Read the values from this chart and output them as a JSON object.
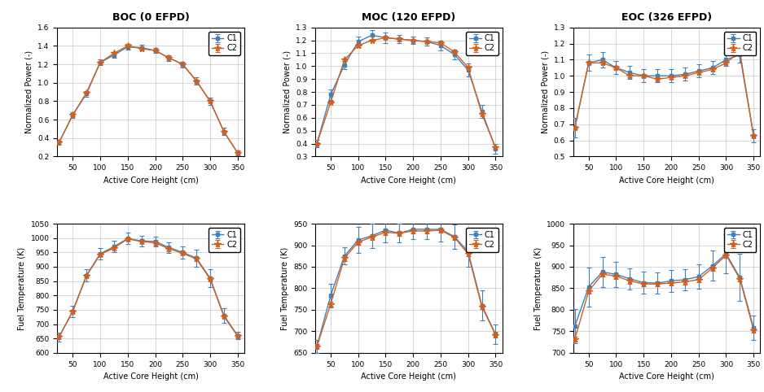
{
  "titles": [
    "BOC (0 EFPD)",
    "MOC (120 EFPD)",
    "EOC (326 EFPD)"
  ],
  "xlabel": "Active Core Height (cm)",
  "ylabel_power": "Normalized Power (-)",
  "ylabel_temp": "Fuel Temperature (K)",
  "x": [
    25,
    50,
    75,
    100,
    125,
    150,
    175,
    200,
    225,
    250,
    275,
    300,
    325,
    350
  ],
  "boc_c1_power": [
    0.35,
    0.65,
    0.88,
    1.22,
    1.3,
    1.39,
    1.38,
    1.35,
    1.27,
    1.2,
    1.02,
    0.8,
    0.47,
    0.24
  ],
  "boc_c2_power": [
    0.35,
    0.65,
    0.89,
    1.22,
    1.32,
    1.4,
    1.37,
    1.35,
    1.27,
    1.2,
    1.02,
    0.8,
    0.47,
    0.24
  ],
  "boc_c1_power_err": [
    0.02,
    0.03,
    0.03,
    0.03,
    0.03,
    0.03,
    0.03,
    0.03,
    0.03,
    0.03,
    0.04,
    0.04,
    0.04,
    0.03
  ],
  "boc_c2_power_err": [
    0.01,
    0.01,
    0.01,
    0.01,
    0.01,
    0.01,
    0.01,
    0.01,
    0.01,
    0.01,
    0.01,
    0.01,
    0.01,
    0.01
  ],
  "moc_c1_power": [
    0.4,
    0.78,
    1.01,
    1.19,
    1.24,
    1.22,
    1.21,
    1.2,
    1.19,
    1.16,
    1.09,
    0.97,
    0.65,
    0.36
  ],
  "moc_c2_power": [
    0.4,
    0.72,
    1.05,
    1.16,
    1.2,
    1.22,
    1.21,
    1.2,
    1.19,
    1.18,
    1.11,
    0.99,
    0.63,
    0.37
  ],
  "moc_c1_power_err": [
    0.03,
    0.04,
    0.03,
    0.04,
    0.04,
    0.04,
    0.03,
    0.03,
    0.03,
    0.04,
    0.04,
    0.05,
    0.05,
    0.04
  ],
  "moc_c2_power_err": [
    0.01,
    0.01,
    0.01,
    0.01,
    0.01,
    0.01,
    0.01,
    0.01,
    0.01,
    0.01,
    0.01,
    0.01,
    0.01,
    0.01
  ],
  "eoc_c1_power": [
    0.68,
    1.08,
    1.1,
    1.05,
    1.02,
    1.0,
    1.0,
    1.0,
    1.01,
    1.03,
    1.05,
    1.1,
    1.13,
    0.63
  ],
  "eoc_c2_power": [
    0.68,
    1.08,
    1.08,
    1.05,
    1.0,
    1.0,
    0.98,
    0.99,
    1.0,
    1.02,
    1.04,
    1.08,
    1.15,
    0.63
  ],
  "eoc_c1_power_err": [
    0.06,
    0.05,
    0.05,
    0.04,
    0.04,
    0.04,
    0.04,
    0.04,
    0.04,
    0.04,
    0.04,
    0.04,
    0.05,
    0.04
  ],
  "eoc_c2_power_err": [
    0.01,
    0.01,
    0.01,
    0.01,
    0.01,
    0.01,
    0.01,
    0.01,
    0.01,
    0.01,
    0.01,
    0.01,
    0.01,
    0.01
  ],
  "boc_c1_temp": [
    655,
    745,
    870,
    945,
    970,
    998,
    990,
    988,
    967,
    950,
    930,
    860,
    730,
    660
  ],
  "boc_c2_temp": [
    655,
    743,
    868,
    943,
    965,
    997,
    988,
    983,
    963,
    947,
    927,
    857,
    727,
    658
  ],
  "boc_c1_temp_err": [
    15,
    20,
    20,
    20,
    20,
    20,
    18,
    18,
    18,
    22,
    30,
    32,
    25,
    12
  ],
  "boc_c2_temp_err": [
    6,
    6,
    6,
    6,
    6,
    6,
    6,
    6,
    6,
    6,
    6,
    6,
    6,
    6
  ],
  "moc_c1_temp": [
    665,
    783,
    875,
    912,
    922,
    935,
    928,
    937,
    937,
    937,
    920,
    885,
    760,
    693
  ],
  "moc_c2_temp": [
    665,
    763,
    870,
    907,
    919,
    930,
    928,
    933,
    933,
    935,
    918,
    880,
    757,
    692
  ],
  "moc_c1_temp_err": [
    15,
    28,
    20,
    30,
    28,
    28,
    22,
    22,
    22,
    28,
    28,
    35,
    35,
    22
  ],
  "moc_c2_temp_err": [
    6,
    6,
    6,
    6,
    6,
    6,
    6,
    6,
    6,
    6,
    6,
    6,
    6,
    6
  ],
  "eoc_c1_temp": [
    762,
    853,
    888,
    882,
    872,
    863,
    862,
    867,
    870,
    877,
    902,
    930,
    875,
    758
  ],
  "eoc_c2_temp": [
    732,
    843,
    883,
    878,
    867,
    860,
    860,
    862,
    865,
    870,
    897,
    927,
    872,
    753
  ],
  "eoc_c1_temp_err": [
    40,
    45,
    35,
    30,
    25,
    25,
    25,
    25,
    25,
    28,
    35,
    45,
    55,
    28
  ],
  "eoc_c2_temp_err": [
    6,
    6,
    6,
    6,
    6,
    6,
    6,
    6,
    6,
    6,
    6,
    6,
    6,
    6
  ],
  "c1_color": "#3F80BC",
  "c2_color": "#D2601A",
  "background_color": "#FFFFFF",
  "grid_color": "#C8C8C8",
  "boc_power_ylim": [
    0.2,
    1.6
  ],
  "moc_power_ylim": [
    0.3,
    1.3
  ],
  "eoc_power_ylim": [
    0.5,
    1.3
  ],
  "boc_temp_ylim": [
    600,
    1050
  ],
  "moc_temp_ylim": [
    650,
    950
  ],
  "eoc_temp_ylim": [
    700,
    1000
  ],
  "boc_power_yticks": [
    0.2,
    0.4,
    0.6,
    0.8,
    1.0,
    1.2,
    1.4,
    1.6
  ],
  "moc_power_yticks": [
    0.3,
    0.4,
    0.5,
    0.6,
    0.7,
    0.8,
    0.9,
    1.0,
    1.1,
    1.2,
    1.3
  ],
  "eoc_power_yticks": [
    0.5,
    0.6,
    0.7,
    0.8,
    0.9,
    1.0,
    1.1,
    1.2,
    1.3
  ],
  "boc_temp_yticks": [
    600,
    650,
    700,
    750,
    800,
    850,
    900,
    950,
    1000,
    1050
  ],
  "moc_temp_yticks": [
    650,
    700,
    750,
    800,
    850,
    900,
    950
  ],
  "eoc_temp_yticks": [
    700,
    750,
    800,
    850,
    900,
    950,
    1000
  ],
  "xticks": [
    50,
    100,
    150,
    200,
    250,
    300,
    350
  ]
}
